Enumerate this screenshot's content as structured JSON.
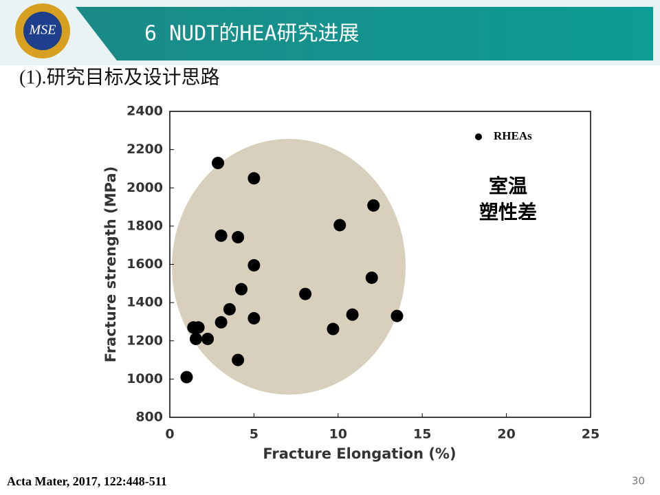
{
  "header": {
    "logo": "MSE",
    "title": "6 NUDT的HEA研究进展"
  },
  "subtitle": "(1).研究目标及设计思路",
  "chart_data": {
    "type": "scatter",
    "x_label": "Fracture Elongation (%)",
    "y_label": "Fracture strength (MPa)",
    "xlim": [
      0,
      25
    ],
    "xticks": [
      0,
      5,
      10,
      15,
      20,
      25
    ],
    "ylim": [
      800,
      2400
    ],
    "yticks": [
      800,
      1000,
      1200,
      1400,
      1600,
      1800,
      2000,
      2200,
      2400
    ],
    "annotation": [
      "室温",
      "塑性差"
    ],
    "series": [
      {
        "name": "RHEAs",
        "color": "#000000",
        "x": [
          1.0,
          1.4,
          1.7,
          1.55,
          2.25,
          2.86,
          5.0,
          3.05,
          4.05,
          5.0,
          4.25,
          3.55,
          3.05,
          5.0,
          4.05,
          8.05,
          10.1,
          12.1,
          12.0,
          9.7,
          10.85,
          13.5
        ],
        "values": [
          1010,
          1270,
          1270,
          1210,
          1210,
          2130,
          2050,
          1750,
          1742,
          1595,
          1470,
          1365,
          1297,
          1318,
          1100,
          1445,
          1805,
          1908,
          1530,
          1262,
          1337,
          1330
        ]
      }
    ]
  },
  "citation": "Acta Mater, 2017, 122:448-511",
  "page_number": "30"
}
